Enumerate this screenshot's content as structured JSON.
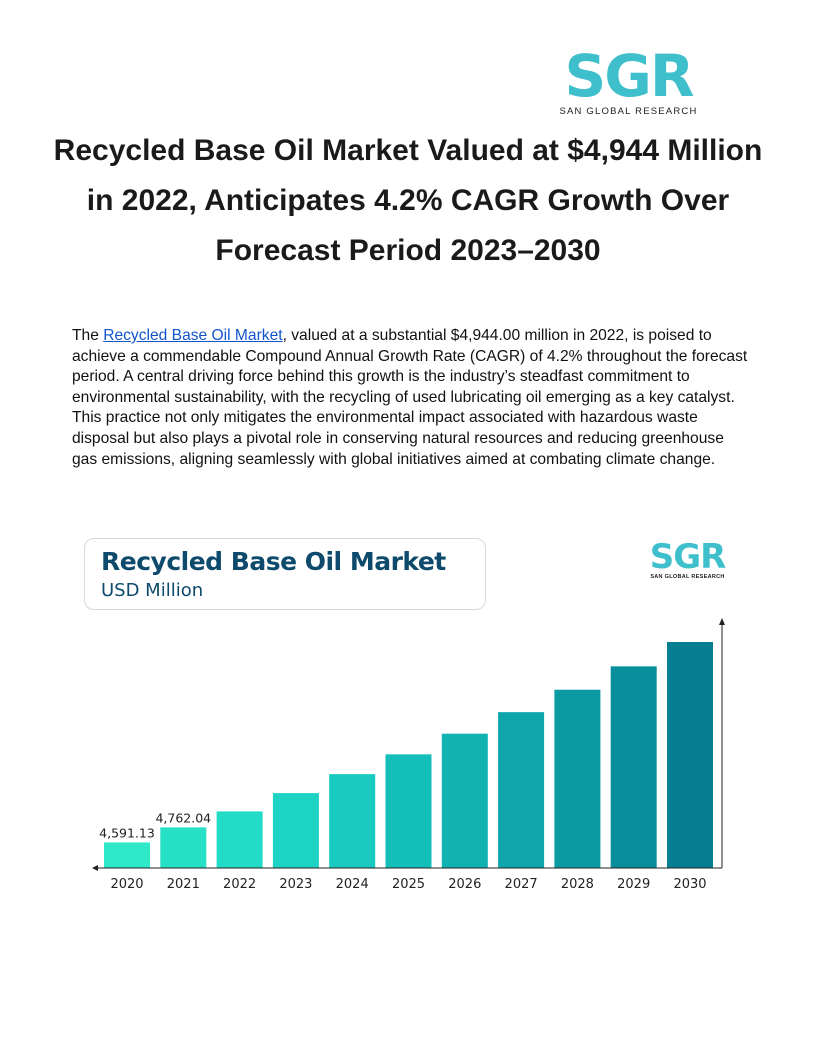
{
  "logo": {
    "mark": "SGR",
    "subtitle": "SAN GLOBAL RESEARCH"
  },
  "title": "Recycled Base Oil Market Valued at $4,944 Million in 2022, Anticipates 4.2% CAGR Growth Over Forecast Period 2023–2030",
  "paragraph": {
    "prefix": "The ",
    "link_text": "Recycled Base Oil Market",
    "body": ", valued at a substantial $4,944.00 million in 2022, is poised to achieve a commendable Compound Annual Growth Rate (CAGR) of 4.2% throughout the forecast period. A central driving force behind this growth is the industry’s steadfast commitment to environmental sustainability, with the recycling of used lubricating oil emerging as a key catalyst. This practice not only mitigates the environmental impact associated with hazardous waste disposal but also plays a pivotal role in conserving natural resources and reducing greenhouse gas emissions, aligning seamlessly with global initiatives aimed at combating climate change."
  },
  "chart_data": {
    "type": "bar",
    "title": "Recycled Base Oil Market",
    "subtitle": "USD Million",
    "logo": "SGR",
    "logo_sub": "SAN GLOBAL RESEARCH",
    "categories": [
      "2020",
      "2021",
      "2022",
      "2023",
      "2024",
      "2025",
      "2026",
      "2027",
      "2028",
      "2029",
      "2030"
    ],
    "values": [
      4591.13,
      4762.04,
      4944,
      5152,
      5368,
      5593,
      5828,
      6073,
      6328,
      6594,
      6871
    ],
    "data_labels": [
      "4,591.13",
      "4,762.04",
      "",
      "",
      "",
      "",
      "",
      "",
      "",
      "",
      ""
    ],
    "colors": [
      "#2ee8c8",
      "#27e0c6",
      "#22dcc8",
      "#1dd4c4",
      "#18cabf",
      "#14bfb9",
      "#11b2b2",
      "#0ea6aa",
      "#0b9aa2",
      "#098e9b",
      "#077f92"
    ],
    "axis_color": "#222222"
  }
}
